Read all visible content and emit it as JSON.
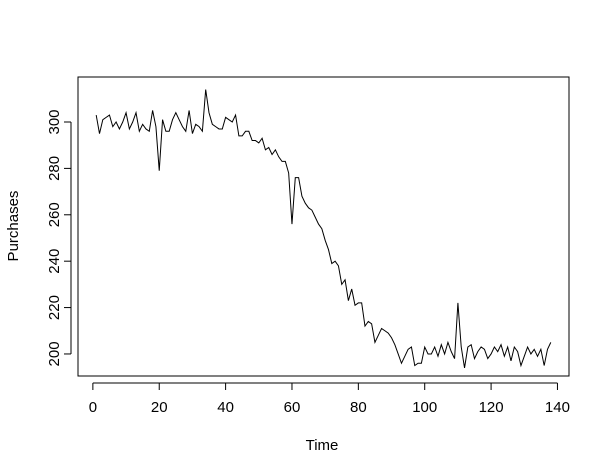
{
  "chart_data": {
    "type": "line",
    "xlabel": "Time",
    "ylabel": "Purchases",
    "color": "#000000",
    "x": [
      1,
      2,
      3,
      4,
      5,
      6,
      7,
      8,
      9,
      10,
      11,
      12,
      13,
      14,
      15,
      16,
      17,
      18,
      19,
      20,
      21,
      22,
      23,
      24,
      25,
      26,
      27,
      28,
      29,
      30,
      31,
      32,
      33,
      34,
      35,
      36,
      37,
      38,
      39,
      40,
      41,
      42,
      43,
      44,
      45,
      46,
      47,
      48,
      49,
      50,
      51,
      52,
      53,
      54,
      55,
      56,
      57,
      58,
      59,
      60,
      61,
      62,
      63,
      64,
      65,
      66,
      67,
      68,
      69,
      70,
      71,
      72,
      73,
      74,
      75,
      76,
      77,
      78,
      79,
      80,
      81,
      82,
      83,
      84,
      85,
      86,
      87,
      88,
      89,
      90,
      91,
      92,
      93,
      94,
      95,
      96,
      97,
      98,
      99,
      100,
      101,
      102,
      103,
      104,
      105,
      106,
      107,
      108,
      109,
      110,
      111,
      112,
      113,
      114,
      115,
      116,
      117,
      118,
      119,
      120,
      121,
      122,
      123,
      124,
      125,
      126,
      127,
      128,
      129,
      130,
      131,
      132,
      133,
      134,
      135,
      136,
      137,
      138
    ],
    "values": [
      303,
      295,
      301,
      302,
      303,
      298,
      300,
      297,
      300,
      304,
      297,
      300,
      304,
      296,
      299,
      297,
      296,
      305,
      298,
      279,
      301,
      296,
      296,
      301,
      304,
      301,
      298,
      296,
      305,
      295,
      299,
      298,
      296,
      314,
      304,
      299,
      298,
      297,
      297,
      302,
      301,
      300,
      303,
      294,
      294,
      296,
      296,
      292,
      292,
      291,
      293,
      288,
      289,
      286,
      288,
      285,
      283,
      283,
      278,
      256,
      276,
      276,
      268,
      265,
      263,
      262,
      259,
      256,
      254,
      249,
      245,
      239,
      240,
      238,
      230,
      232,
      223,
      228,
      221,
      222,
      222,
      212,
      214,
      213,
      205,
      208,
      211,
      210,
      209,
      207,
      204,
      200,
      196,
      199,
      202,
      203,
      195,
      196,
      196,
      203,
      200,
      200,
      203,
      199,
      204,
      200,
      205,
      201,
      198,
      222,
      203,
      194,
      203,
      204,
      198,
      201,
      203,
      202,
      198,
      200,
      203,
      201,
      204,
      199,
      203,
      197,
      203,
      201,
      195,
      199,
      203,
      200,
      202,
      199,
      202,
      195,
      202,
      205
    ],
    "xlim": [
      -4.48,
      143.48
    ],
    "ylim": [
      190.5,
      319.4
    ],
    "xticks": [
      0,
      20,
      40,
      60,
      80,
      100,
      120,
      140
    ],
    "yticks": [
      200,
      220,
      240,
      260,
      280,
      300
    ]
  }
}
